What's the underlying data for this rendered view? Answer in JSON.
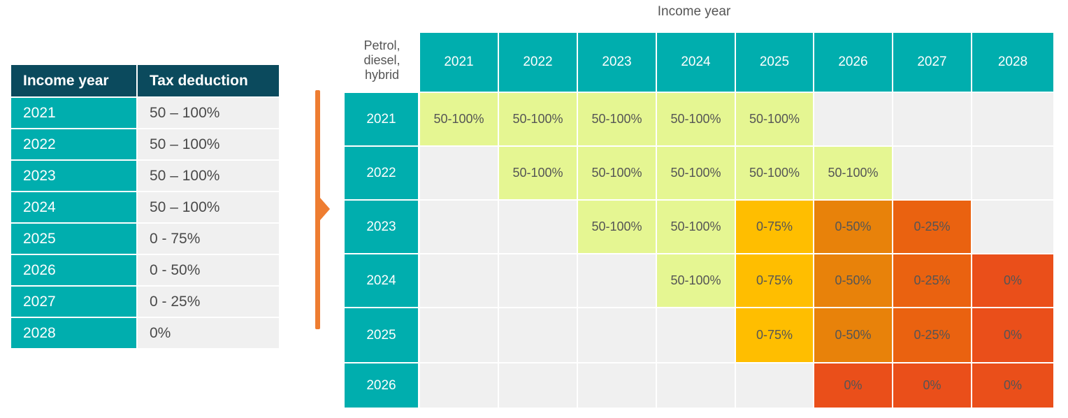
{
  "left_table": {
    "headers": [
      "Income year",
      "Tax deduction"
    ],
    "rows": [
      {
        "year": "2021",
        "deduction": "50 – 100%"
      },
      {
        "year": "2022",
        "deduction": "50 – 100%"
      },
      {
        "year": "2023",
        "deduction": "50 – 100%"
      },
      {
        "year": "2024",
        "deduction": "50 – 100%"
      },
      {
        "year": "2025",
        "deduction": "0 - 75%"
      },
      {
        "year": "2026",
        "deduction": "0 - 50%"
      },
      {
        "year": "2027",
        "deduction": "0 - 25%"
      },
      {
        "year": "2028",
        "deduction": "0%"
      }
    ]
  },
  "grid": {
    "title": "Income year",
    "corner_label": [
      "Petrol,",
      "diesel,",
      "hybrid"
    ],
    "columns": [
      "2021",
      "2022",
      "2023",
      "2024",
      "2025",
      "2026",
      "2027",
      "2028"
    ],
    "rows": [
      {
        "year": "2021",
        "cells": [
          "50-100%",
          "50-100%",
          "50-100%",
          "50-100%",
          "50-100%",
          "",
          "",
          ""
        ]
      },
      {
        "year": "2022",
        "cells": [
          "",
          "50-100%",
          "50-100%",
          "50-100%",
          "50-100%",
          "50-100%",
          "",
          ""
        ]
      },
      {
        "year": "2023",
        "cells": [
          "",
          "",
          "50-100%",
          "50-100%",
          "0-75%",
          "0-50%",
          "0-25%",
          ""
        ]
      },
      {
        "year": "2024",
        "cells": [
          "",
          "",
          "",
          "50-100%",
          "0-75%",
          "0-50%",
          "0-25%",
          "0%"
        ]
      },
      {
        "year": "2025",
        "cells": [
          "",
          "",
          "",
          "",
          "0-75%",
          "0-50%",
          "0-25%",
          "0%"
        ]
      },
      {
        "year": "2026",
        "cells": [
          "",
          "",
          "",
          "",
          "",
          "0%",
          "0%",
          "0%"
        ]
      }
    ]
  },
  "colors": {
    "header_dark": "#0b4a5d",
    "teal": "#00aeae",
    "empty": "#f0f0f0",
    "50-100%": "#e5f692",
    "0-75%": "#ffbe00",
    "0-50%": "#e8820a",
    "0-25%": "#ea6210",
    "0%": "#ea4f1a",
    "arrow": "#ee7d31"
  }
}
